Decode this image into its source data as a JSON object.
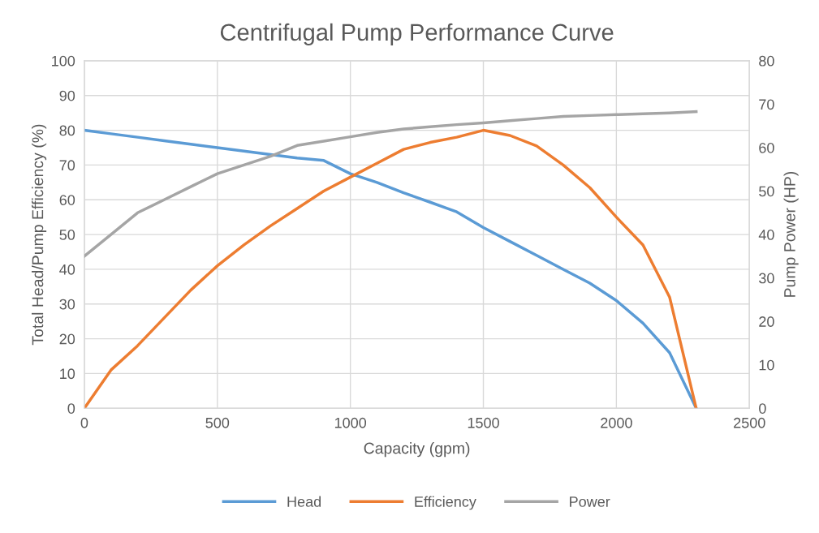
{
  "chart_data": {
    "type": "line",
    "title": "Centrifugal Pump Performance Curve",
    "xlabel": "Capacity (gpm)",
    "ylabel": "Total Head/Pump Efficiency (%)",
    "y2label": "Pump Power (HP)",
    "x": [
      0,
      100,
      200,
      300,
      400,
      500,
      600,
      700,
      800,
      900,
      1000,
      1100,
      1200,
      1300,
      1400,
      1500,
      1600,
      1700,
      1800,
      1900,
      2000,
      2100,
      2200,
      2300
    ],
    "series": [
      {
        "name": "Head",
        "color": "#5b9bd5",
        "values": [
          80,
          79,
          78,
          77,
          76,
          75,
          74,
          73,
          72,
          71.3,
          67.5,
          65,
          62,
          59.3,
          56.5,
          52,
          48,
          44,
          40,
          36,
          31,
          24.5,
          16,
          0
        ]
      },
      {
        "name": "Efficiency",
        "color": "#ed7d31",
        "values": [
          0,
          11,
          18,
          26,
          34,
          41,
          47,
          52.5,
          57.5,
          62.5,
          66.5,
          70.5,
          74.5,
          76.5,
          78,
          80,
          78.5,
          75.5,
          70,
          63.5,
          55,
          47,
          32,
          0
        ]
      },
      {
        "name": "Power",
        "color": "#a5a5a5",
        "axis": "y2",
        "values": [
          35,
          40,
          45,
          48,
          51,
          54,
          56,
          58,
          60.5,
          61.5,
          62.5,
          63.5,
          64.3,
          64.8,
          65.3,
          65.7,
          66.2,
          66.7,
          67.2,
          67.4,
          67.6,
          67.8,
          68,
          68.3
        ]
      }
    ],
    "xlim": [
      0,
      2500
    ],
    "xticks": [
      0,
      500,
      1000,
      1500,
      2000,
      2500
    ],
    "ylim": [
      0,
      100
    ],
    "yticks": [
      0,
      10,
      20,
      30,
      40,
      50,
      60,
      70,
      80,
      90,
      100
    ],
    "y2lim": [
      0,
      80
    ],
    "y2ticks": [
      0,
      10,
      20,
      30,
      40,
      50,
      60,
      70,
      80
    ],
    "grid": true,
    "legend": "bottom",
    "marker": "none",
    "line_style": "solid"
  }
}
